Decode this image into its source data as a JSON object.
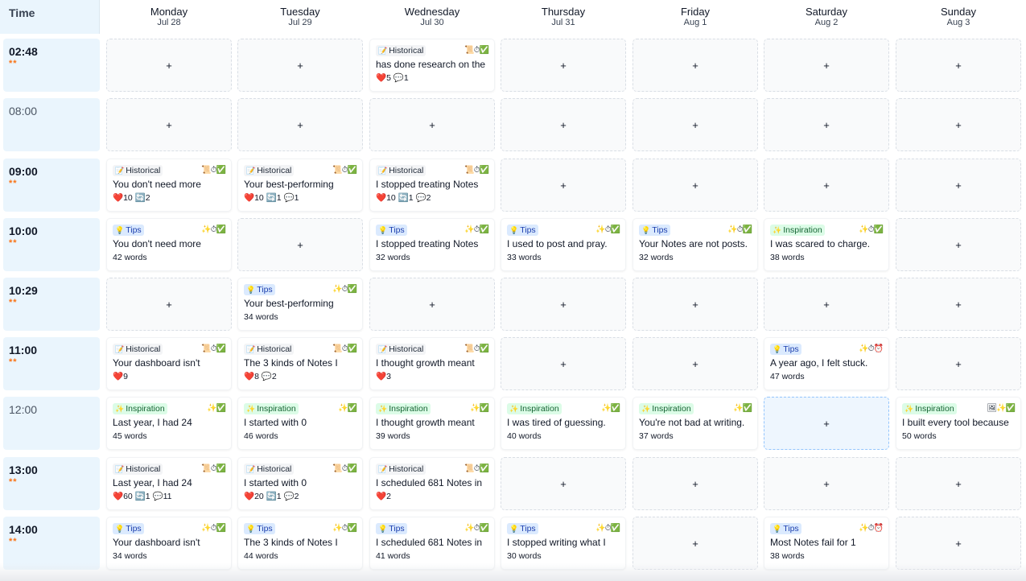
{
  "header": {
    "time_label": "Time"
  },
  "days": [
    {
      "name": "Monday",
      "date": "Jul 28"
    },
    {
      "name": "Tuesday",
      "date": "Jul 29"
    },
    {
      "name": "Wednesday",
      "date": "Jul 30"
    },
    {
      "name": "Thursday",
      "date": "Jul 31"
    },
    {
      "name": "Friday",
      "date": "Aug 1"
    },
    {
      "name": "Saturday",
      "date": "Aug 2"
    },
    {
      "name": "Sunday",
      "date": "Aug 3"
    }
  ],
  "add_label": "+",
  "rows": [
    {
      "time": "02:48",
      "stars": "**",
      "dim": false,
      "cells": [
        null,
        null,
        {
          "tag": "Historical",
          "tag_icon": "📝",
          "icons": "📜⏱✅",
          "text": "has done research on the",
          "meta": "❤️5 💬1"
        },
        null,
        null,
        null,
        null
      ]
    },
    {
      "time": "08:00",
      "stars": "",
      "dim": true,
      "cells": [
        null,
        null,
        null,
        null,
        null,
        null,
        null
      ]
    },
    {
      "time": "09:00",
      "stars": "**",
      "dim": false,
      "cells": [
        {
          "tag": "Historical",
          "tag_icon": "📝",
          "icons": "📜⏱✅",
          "text": "You don't need more",
          "meta": "❤️10 🔄2"
        },
        {
          "tag": "Historical",
          "tag_icon": "📝",
          "icons": "📜⏱✅",
          "text": "Your best-performing",
          "meta": "❤️10 🔄1 💬1"
        },
        {
          "tag": "Historical",
          "tag_icon": "📝",
          "icons": "📜⏱✅",
          "text": "I stopped treating Notes",
          "meta": "❤️10 🔄1 💬2"
        },
        null,
        null,
        null,
        null
      ]
    },
    {
      "time": "10:00",
      "stars": "**",
      "dim": false,
      "cells": [
        {
          "tag": "Tips",
          "tag_icon": "💡",
          "icons": "✨⏱✅",
          "text": "You don't need more",
          "meta": "42 words"
        },
        null,
        {
          "tag": "Tips",
          "tag_icon": "💡",
          "icons": "✨⏱✅",
          "text": "I stopped treating Notes",
          "meta": "32 words"
        },
        {
          "tag": "Tips",
          "tag_icon": "💡",
          "icons": "✨⏱✅",
          "text": "I used to post and pray.",
          "meta": "33 words"
        },
        {
          "tag": "Tips",
          "tag_icon": "💡",
          "icons": "✨⏱✅",
          "text": "Your Notes are not posts.",
          "meta": "32 words"
        },
        {
          "tag": "Inspiration",
          "tag_icon": "✨",
          "icons": "✨⏱✅",
          "text": "I was scared to charge.",
          "meta": "38 words"
        },
        null
      ]
    },
    {
      "time": "10:29",
      "stars": "**",
      "dim": false,
      "cells": [
        null,
        {
          "tag": "Tips",
          "tag_icon": "💡",
          "icons": "✨⏱✅",
          "text": "Your best-performing",
          "meta": "34 words"
        },
        null,
        null,
        null,
        null,
        null
      ]
    },
    {
      "time": "11:00",
      "stars": "**",
      "dim": false,
      "cells": [
        {
          "tag": "Historical",
          "tag_icon": "📝",
          "icons": "📜⏱✅",
          "text": "Your dashboard isn't",
          "meta": "❤️9"
        },
        {
          "tag": "Historical",
          "tag_icon": "📝",
          "icons": "📜⏱✅",
          "text": "The 3 kinds of Notes I",
          "meta": "❤️8 💬2"
        },
        {
          "tag": "Historical",
          "tag_icon": "📝",
          "icons": "📜⏱✅",
          "text": "I thought growth meant",
          "meta": "❤️3"
        },
        null,
        null,
        {
          "tag": "Tips",
          "tag_icon": "💡",
          "icons": "✨⏱⏰",
          "text": "A year ago, I felt stuck.",
          "meta": "47 words"
        },
        null
      ]
    },
    {
      "time": "12:00",
      "stars": "",
      "dim": true,
      "cells": [
        {
          "tag": "Inspiration",
          "tag_icon": "✨",
          "icons": "✨✅",
          "text": "Last year, I had 24",
          "meta": "45 words"
        },
        {
          "tag": "Inspiration",
          "tag_icon": "✨",
          "icons": "✨✅",
          "text": "I started with 0",
          "meta": "46 words"
        },
        {
          "tag": "Inspiration",
          "tag_icon": "✨",
          "icons": "✨✅",
          "text": "I thought growth meant",
          "meta": "39 words"
        },
        {
          "tag": "Inspiration",
          "tag_icon": "✨",
          "icons": "✨✅",
          "text": "I was tired of guessing.",
          "meta": "40 words"
        },
        {
          "tag": "Inspiration",
          "tag_icon": "✨",
          "icons": "✨✅",
          "text": "You're not bad at writing.",
          "meta": "37 words"
        },
        "highlight",
        {
          "tag": "Inspiration",
          "tag_icon": "✨",
          "icons": "🖼✨✅",
          "text": "I built every tool because",
          "meta": "50 words"
        }
      ]
    },
    {
      "time": "13:00",
      "stars": "**",
      "dim": false,
      "cells": [
        {
          "tag": "Historical",
          "tag_icon": "📝",
          "icons": "📜⏱✅",
          "text": "Last year, I had 24",
          "meta": "❤️60 🔄1 💬11"
        },
        {
          "tag": "Historical",
          "tag_icon": "📝",
          "icons": "📜⏱✅",
          "text": "I started with 0",
          "meta": "❤️20 🔄1 💬2"
        },
        {
          "tag": "Historical",
          "tag_icon": "📝",
          "icons": "📜⏱✅",
          "text": "I scheduled 681 Notes in",
          "meta": "❤️2"
        },
        null,
        null,
        null,
        null
      ]
    },
    {
      "time": "14:00",
      "stars": "**",
      "dim": false,
      "cells": [
        {
          "tag": "Tips",
          "tag_icon": "💡",
          "icons": "✨⏱✅",
          "text": "Your dashboard isn't",
          "meta": "34 words"
        },
        {
          "tag": "Tips",
          "tag_icon": "💡",
          "icons": "✨⏱✅",
          "text": "The 3 kinds of Notes I",
          "meta": "44 words"
        },
        {
          "tag": "Tips",
          "tag_icon": "💡",
          "icons": "✨⏱✅",
          "text": "I scheduled 681 Notes in",
          "meta": "41 words"
        },
        {
          "tag": "Tips",
          "tag_icon": "💡",
          "icons": "✨⏱✅",
          "text": "I stopped writing what I",
          "meta": "30 words"
        },
        null,
        {
          "tag": "Tips",
          "tag_icon": "💡",
          "icons": "✨⏱⏰",
          "text": "Most Notes fail for 1",
          "meta": "38 words"
        },
        null
      ]
    }
  ]
}
